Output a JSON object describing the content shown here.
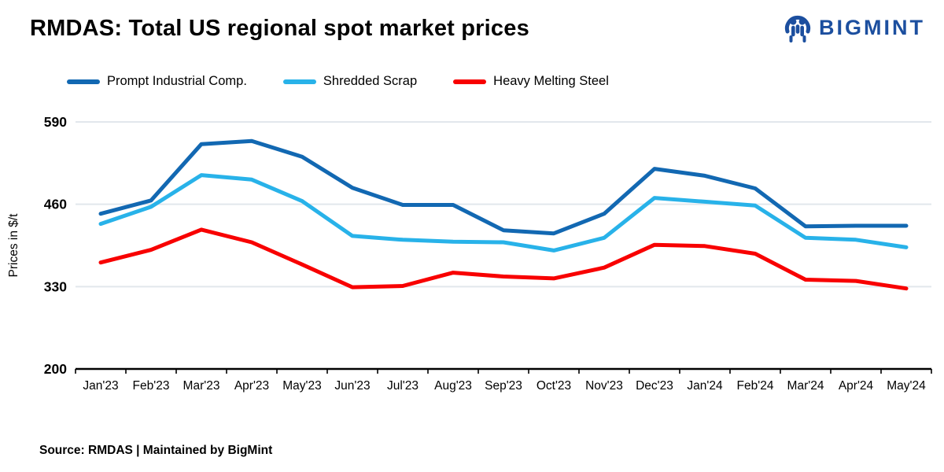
{
  "header": {
    "title": "RMDAS: Total US regional spot market prices",
    "logo_text": "BIGMINT"
  },
  "footer": {
    "source": "Source: RMDAS | Maintained by BigMint"
  },
  "colors": {
    "logo": "#1c4f9f",
    "grid": "#e2e7ec",
    "axis": "#000000",
    "prompt_industrial": "#1268b2",
    "shredded_scrap": "#28b2e9",
    "heavy_melting": "#f80000"
  },
  "chart_data": {
    "type": "line",
    "title": "RMDAS: Total US regional spot market prices",
    "xlabel": "",
    "ylabel": "Prices in $/t",
    "ylim": [
      200,
      590
    ],
    "yticks": [
      200,
      330,
      460,
      590
    ],
    "grid": true,
    "legend_position": "top",
    "categories": [
      "Jan'23",
      "Feb'23",
      "Mar'23",
      "Apr'23",
      "May'23",
      "Jun'23",
      "Jul'23",
      "Aug'23",
      "Sep'23",
      "Oct'23",
      "Nov'23",
      "Dec'23",
      "Jan'24",
      "Feb'24",
      "Mar'24",
      "Apr'24",
      "May'24"
    ],
    "series": [
      {
        "name": "Prompt Industrial Comp.",
        "color": "#1268b2",
        "values": [
          445,
          466,
          555,
          560,
          535,
          486,
          459,
          459,
          419,
          414,
          445,
          516,
          505,
          485,
          425,
          426,
          426
        ]
      },
      {
        "name": "Shredded Scrap",
        "color": "#28b2e9",
        "values": [
          429,
          456,
          506,
          499,
          465,
          410,
          404,
          401,
          400,
          387,
          407,
          470,
          464,
          458,
          407,
          404,
          392
        ]
      },
      {
        "name": "Heavy Melting Steel",
        "color": "#f80000",
        "values": [
          368,
          388,
          420,
          400,
          365,
          329,
          331,
          352,
          346,
          343,
          360,
          396,
          394,
          382,
          341,
          339,
          327
        ]
      }
    ]
  }
}
